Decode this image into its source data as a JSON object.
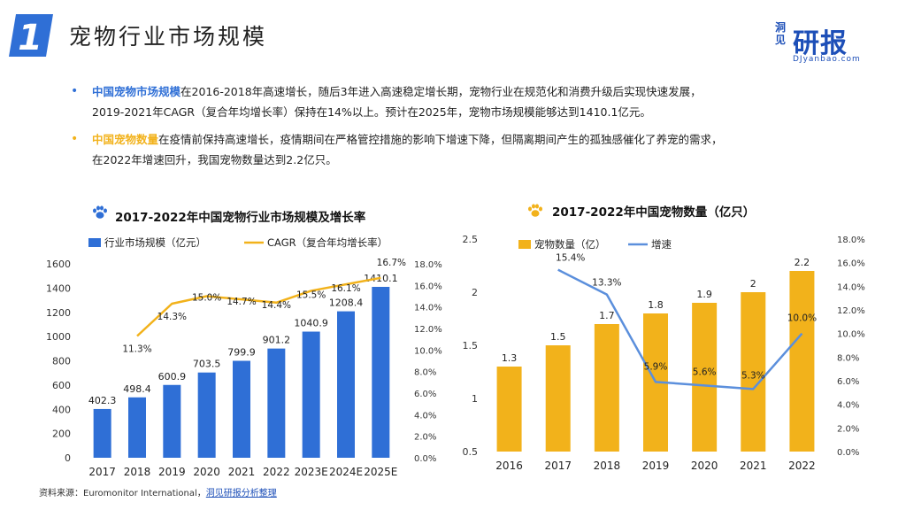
{
  "header": {
    "slide_number": "1",
    "title": "宠物行业市场规模"
  },
  "brand": {
    "name_cn": "洞见",
    "name_main": "研报",
    "url": "DJyanbao.com"
  },
  "bullets": [
    {
      "highlight": "中国宠物市场规模",
      "line1": "在2016-2018年高速增长，随后3年进入高速稳定增长期，宠物行业在规范化和消费升级后实现快速发展，",
      "line2": "2019-2021年CAGR（复合年均增长率）保持在14%以上。预计在2025年，宠物市场规模能够达到1410.1亿元。"
    },
    {
      "highlight": "中国宠物数量",
      "line1": "在疫情前保持高速增长，疫情期间在严格管控措施的影响下增速下降，但隔离期间产生的孤独感催化了养宠的需求，",
      "line2": "在2022年增速回升，我国宠物数量达到2.2亿只。"
    }
  ],
  "source": {
    "prefix": "资料来源：Euromonitor International，",
    "link": "洞见研报分析整理"
  },
  "colors": {
    "blue": "#2f6fd6",
    "gold": "#f2b21b",
    "accent": "#1d4fb8"
  },
  "chart_data": [
    {
      "type": "bar",
      "title": "2017-2022年中国宠物行业市场规模及增长率",
      "categories": [
        "2017",
        "2018",
        "2019",
        "2020",
        "2021",
        "2022",
        "2023E",
        "2024E",
        "2025E"
      ],
      "series": [
        {
          "name": "行业市场规模（亿元）",
          "type": "bar",
          "axis": "left",
          "color": "#2f6fd6",
          "values": [
            402.3,
            498.4,
            600.9,
            703.5,
            799.9,
            901.2,
            1040.9,
            1208.4,
            1410.1
          ],
          "labels": [
            "402.3",
            "498.4",
            "600.9",
            "703.5",
            "799.9",
            "901.2",
            "1040.9",
            "1208.4",
            "1410.1"
          ]
        },
        {
          "name": "CAGR（复合年均增长率）",
          "type": "line",
          "axis": "right",
          "color": "#f2b21b",
          "values": [
            null,
            11.3,
            14.3,
            15.0,
            14.7,
            14.4,
            15.5,
            16.1,
            16.7
          ],
          "labels": [
            "",
            "11.3%",
            "14.3%",
            "15.0%",
            "14.7%",
            "14.4%",
            "15.5%",
            "16.1%",
            "16.7%"
          ]
        }
      ],
      "y_left": {
        "min": 0,
        "max": 1600,
        "ticks": [
          "0",
          "200",
          "400",
          "600",
          "800",
          "1000",
          "1200",
          "1400",
          "1600"
        ]
      },
      "y_right": {
        "min": 0,
        "max": 18,
        "ticks": [
          "0.0%",
          "2.0%",
          "4.0%",
          "6.0%",
          "8.0%",
          "10.0%",
          "12.0%",
          "14.0%",
          "16.0%",
          "18.0%"
        ]
      },
      "legend": "top-left"
    },
    {
      "type": "bar",
      "title": "2017-2022年中国宠物数量（亿只）",
      "categories": [
        "2016",
        "2017",
        "2018",
        "2019",
        "2020",
        "2021",
        "2022"
      ],
      "series": [
        {
          "name": "宠物数量（亿）",
          "type": "bar",
          "axis": "left",
          "color": "#f2b21b",
          "values": [
            1.3,
            1.5,
            1.7,
            1.8,
            1.9,
            2.0,
            2.2
          ],
          "labels": [
            "1.3",
            "1.5",
            "1.7",
            "1.8",
            "1.9",
            "2",
            "2.2"
          ]
        },
        {
          "name": "增速",
          "type": "line",
          "axis": "right",
          "color": "#5b8fdc",
          "values": [
            null,
            15.4,
            13.3,
            5.9,
            5.6,
            5.3,
            10.0
          ],
          "labels": [
            "",
            "15.4%",
            "13.3%",
            "5.9%",
            "5.6%",
            "5.3%",
            "10.0%"
          ]
        }
      ],
      "y_left": {
        "min": 0.5,
        "max": 2.5,
        "ticks": [
          "0.5",
          "1",
          "1.5",
          "2",
          "2.5"
        ]
      },
      "y_right": {
        "min": 0,
        "max": 18,
        "ticks": [
          "0.0%",
          "2.0%",
          "4.0%",
          "6.0%",
          "8.0%",
          "10.0%",
          "12.0%",
          "14.0%",
          "16.0%",
          "18.0%"
        ]
      },
      "legend": "top-left"
    }
  ]
}
